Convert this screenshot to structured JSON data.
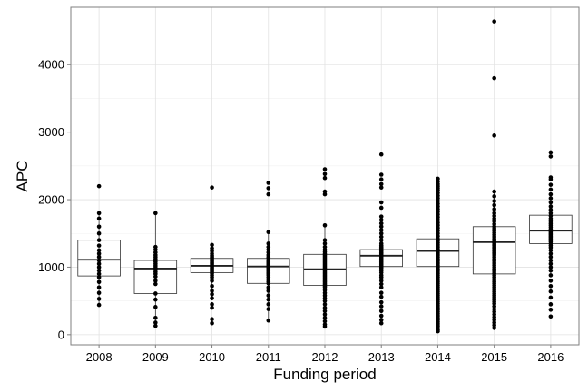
{
  "chart_data": {
    "type": "box",
    "xlabel": "Funding period",
    "ylabel": "APC",
    "categories": [
      "2008",
      "2009",
      "2010",
      "2011",
      "2012",
      "2013",
      "2014",
      "2015",
      "2016"
    ],
    "ylim": [
      -150,
      4850
    ],
    "yticks": [
      0,
      1000,
      2000,
      3000,
      4000
    ],
    "grid": true,
    "boxes": [
      {
        "category": "2008",
        "q1": 870,
        "median": 1110,
        "q3": 1400,
        "whisker_low": 440,
        "whisker_high": 1800
      },
      {
        "category": "2009",
        "q1": 610,
        "median": 980,
        "q3": 1100,
        "whisker_low": 130,
        "whisker_high": 1800
      },
      {
        "category": "2010",
        "q1": 920,
        "median": 1020,
        "q3": 1130,
        "whisker_low": 600,
        "whisker_high": 1330
      },
      {
        "category": "2011",
        "q1": 760,
        "median": 1010,
        "q3": 1130,
        "whisker_low": 210,
        "whisker_high": 1520
      },
      {
        "category": "2012",
        "q1": 730,
        "median": 970,
        "q3": 1190,
        "whisker_low": 120,
        "whisker_high": 1620
      },
      {
        "category": "2013",
        "q1": 1010,
        "median": 1170,
        "q3": 1260,
        "whisker_low": 750,
        "whisker_high": 1500
      },
      {
        "category": "2014",
        "q1": 1010,
        "median": 1240,
        "q3": 1420,
        "whisker_low": 50,
        "whisker_high": 2000
      },
      {
        "category": "2015",
        "q1": 900,
        "median": 1370,
        "q3": 1600,
        "whisker_low": 100,
        "whisker_high": 2100
      },
      {
        "category": "2016",
        "q1": 1350,
        "median": 1540,
        "q3": 1770,
        "whisker_low": 880,
        "whisker_high": 2100
      }
    ],
    "points": [
      {
        "category": "2008",
        "values": [
          2200,
          1800,
          1720,
          1600,
          1500,
          1400,
          1320,
          1250,
          1200,
          1150,
          1100,
          1050,
          1000,
          950,
          900,
          850,
          780,
          700,
          620,
          530,
          440
        ]
      },
      {
        "category": "2009",
        "values": [
          1800,
          1300,
          1260,
          1220,
          1180,
          1150,
          1120,
          1100,
          1080,
          1050,
          1020,
          990,
          960,
          930,
          900,
          860,
          800,
          750,
          610,
          520,
          410,
          250,
          180,
          130
        ]
      },
      {
        "category": "2010",
        "values": [
          2180,
          1330,
          1280,
          1240,
          1200,
          1170,
          1150,
          1130,
          1110,
          1090,
          1070,
          1050,
          1030,
          1010,
          990,
          970,
          950,
          930,
          910,
          880,
          850,
          800,
          720,
          650,
          600,
          540,
          450,
          400,
          230,
          170
        ]
      },
      {
        "category": "2011",
        "values": [
          2250,
          2170,
          2080,
          1520,
          1350,
          1300,
          1260,
          1220,
          1180,
          1150,
          1130,
          1100,
          1080,
          1060,
          1040,
          1020,
          1000,
          980,
          960,
          940,
          920,
          900,
          880,
          850,
          820,
          790,
          760,
          700,
          650,
          580,
          520,
          450,
          380,
          210
        ]
      },
      {
        "category": "2012",
        "values": [
          2450,
          2380,
          2320,
          2120,
          2080,
          1620,
          1400,
          1350,
          1300,
          1260,
          1230,
          1200,
          1180,
          1160,
          1140,
          1120,
          1100,
          1080,
          1060,
          1040,
          1020,
          1000,
          980,
          960,
          940,
          920,
          900,
          880,
          860,
          840,
          820,
          800,
          780,
          760,
          740,
          720,
          700,
          660,
          620,
          580,
          540,
          500,
          450,
          400,
          350,
          300,
          250,
          200,
          150,
          120
        ]
      },
      {
        "category": "2013",
        "values": [
          2670,
          2370,
          2300,
          2230,
          2180,
          1960,
          1880,
          1750,
          1700,
          1650,
          1600,
          1550,
          1500,
          1450,
          1400,
          1350,
          1320,
          1300,
          1280,
          1260,
          1240,
          1220,
          1200,
          1180,
          1160,
          1140,
          1120,
          1100,
          1080,
          1060,
          1040,
          1020,
          1000,
          980,
          950,
          920,
          880,
          850,
          800,
          750,
          700,
          620,
          560,
          480,
          420,
          350,
          280,
          220,
          170
        ]
      },
      {
        "category": "2014",
        "values": [
          2310,
          2270,
          2230,
          2200,
          2170,
          2140,
          2100,
          2060,
          2020,
          1980,
          1940,
          1900,
          1860,
          1820,
          1780,
          1740,
          1700,
          1660,
          1620,
          1580,
          1540,
          1500,
          1460,
          1420,
          1390,
          1360,
          1330,
          1300,
          1270,
          1240,
          1210,
          1180,
          1150,
          1120,
          1090,
          1060,
          1030,
          1000,
          970,
          940,
          910,
          880,
          850,
          820,
          790,
          760,
          730,
          700,
          670,
          640,
          610,
          580,
          550,
          520,
          490,
          460,
          430,
          400,
          370,
          340,
          310,
          280,
          250,
          220,
          190,
          160,
          130,
          100,
          70,
          50
        ]
      },
      {
        "category": "2015",
        "values": [
          4640,
          3800,
          2950,
          2120,
          2050,
          1980,
          1920,
          1860,
          1800,
          1760,
          1720,
          1680,
          1640,
          1600,
          1570,
          1540,
          1510,
          1480,
          1450,
          1420,
          1400,
          1380,
          1360,
          1340,
          1320,
          1300,
          1280,
          1260,
          1240,
          1220,
          1200,
          1180,
          1150,
          1120,
          1090,
          1060,
          1030,
          1000,
          970,
          940,
          910,
          880,
          850,
          820,
          790,
          760,
          730,
          700,
          670,
          640,
          610,
          580,
          550,
          520,
          490,
          460,
          420,
          380,
          340,
          300,
          260,
          220,
          180,
          140,
          100
        ]
      },
      {
        "category": "2016",
        "values": [
          2700,
          2640,
          2330,
          2300,
          2220,
          2150,
          2080,
          2020,
          1960,
          1900,
          1850,
          1800,
          1760,
          1720,
          1680,
          1650,
          1620,
          1590,
          1560,
          1540,
          1520,
          1500,
          1480,
          1460,
          1440,
          1420,
          1400,
          1380,
          1350,
          1320,
          1290,
          1250,
          1200,
          1150,
          1100,
          1050,
          1000,
          950,
          880,
          800,
          720,
          640,
          550,
          450,
          370,
          270
        ]
      }
    ]
  }
}
